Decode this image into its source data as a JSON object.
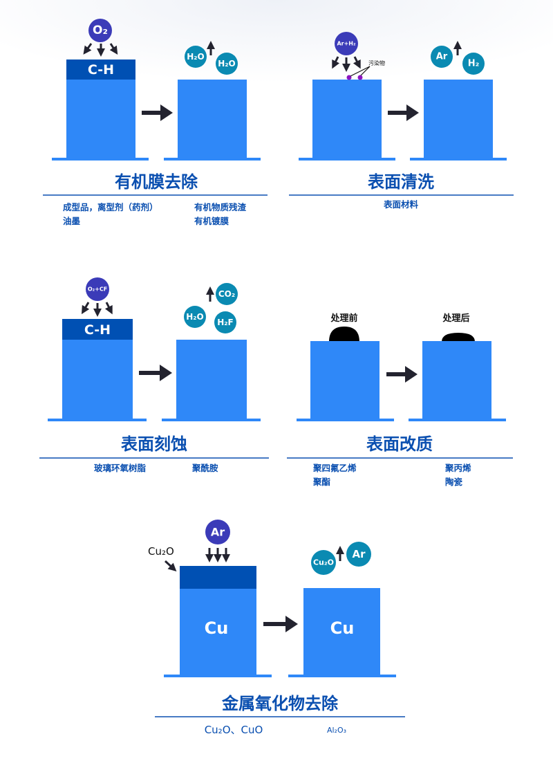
{
  "colors": {
    "block": "#2f88f8",
    "oxide_layer": "#0050b3",
    "reactant": "#3b3bb8",
    "product": "#0a8ab2",
    "title": "#0a4fb0",
    "arrow": "#23232f",
    "contaminant": "#8a14c0"
  },
  "panels": {
    "organic": {
      "reactant": "O₂",
      "layer": "C-H",
      "products": [
        "H₂O",
        "H₂O"
      ],
      "title": "有机膜去除",
      "items_left": [
        "成型品，离型剂（药剂）",
        "油墨"
      ],
      "items_right": [
        "有机物质残渣",
        "有机镀膜"
      ]
    },
    "cleaning": {
      "reactant": "Ar+H₂",
      "contaminant_label": "污染物",
      "products": [
        "Ar",
        "H₂"
      ],
      "title": "表面清洗",
      "items": [
        "表面材料"
      ]
    },
    "etching": {
      "reactant": "O₂+CF",
      "layer": "C-H",
      "products": [
        "CO₂",
        "H₂O",
        "H₂F"
      ],
      "title": "表面刻蚀",
      "items": [
        "玻璃环氧树脂",
        "聚酰胺"
      ]
    },
    "modification": {
      "before_label": "处理前",
      "after_label": "处理后",
      "title": "表面改质",
      "items_left": [
        "聚四氟乙烯",
        "聚酯"
      ],
      "items_right": [
        "聚丙烯",
        "陶瓷"
      ]
    },
    "oxide": {
      "reactant": "Ar",
      "layer_label": "Cu₂O",
      "substrate": "Cu",
      "products": [
        "Cu₂O",
        "Ar"
      ],
      "title": "金属氧化物去除",
      "items": [
        "Cu₂O、CuO",
        "Al₂O₃"
      ]
    }
  }
}
